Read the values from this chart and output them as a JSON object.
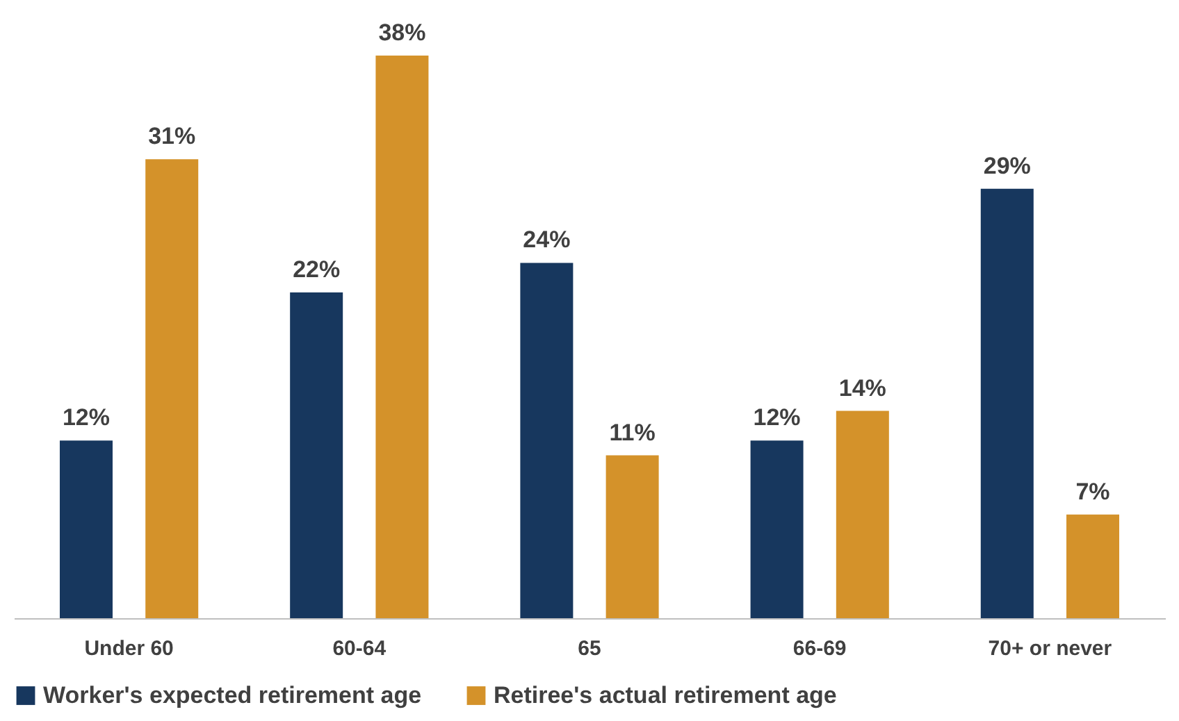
{
  "chart_data": {
    "type": "bar",
    "categories": [
      "Under 60",
      "60-64",
      "65",
      "66-69",
      "70+ or never"
    ],
    "series": [
      {
        "name": "Worker's expected retirement age",
        "color": "#17375e",
        "values": [
          12,
          22,
          24,
          12,
          29
        ],
        "value_labels": [
          "12%",
          "22%",
          "24%",
          "12%",
          "29%"
        ]
      },
      {
        "name": "Retiree's actual retirement age",
        "color": "#d4922a",
        "values": [
          31,
          38,
          11,
          14,
          7
        ],
        "value_labels": [
          "31%",
          "38%",
          "11%",
          "14%",
          "7%"
        ]
      }
    ],
    "legend": "bottom",
    "grid": false
  }
}
